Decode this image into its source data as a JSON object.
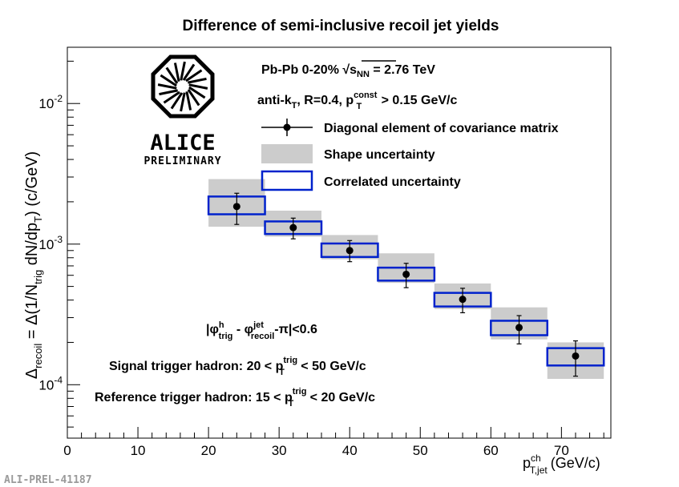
{
  "chart_data": {
    "type": "scatter",
    "title": "Difference of semi-inclusive recoil jet yields",
    "xlabel": {
      "main": "p",
      "sup": "ch",
      "sub": "T,jet",
      "unit": "(GeV/c)"
    },
    "ylabel": "Δrecoil = Δ(1/Ntrig dN/dpT) (c/GeV)",
    "xlim": [
      0,
      77
    ],
    "ylim_log10": [
      -4.38,
      -1.6
    ],
    "x_ticks": [
      0,
      10,
      20,
      30,
      40,
      50,
      60,
      70
    ],
    "x_tick_labels": [
      "0",
      "10",
      "20",
      "30",
      "40",
      "50",
      "60",
      "70"
    ],
    "y_tick_labels": [
      {
        "base": "10",
        "exp": "-2",
        "log10": -2
      },
      {
        "base": "10",
        "exp": "-3",
        "log10": -3
      },
      {
        "base": "10",
        "exp": "-4",
        "log10": -4
      }
    ],
    "series": [
      {
        "name": "Diagonal element of covariance matrix",
        "points": [
          {
            "x": 24,
            "xlow": 20,
            "xhigh": 28,
            "y": 0.00185,
            "ylow": 0.00138,
            "yhigh": 0.0023,
            "shape_low": 0.00133,
            "shape_high": 0.0029,
            "corr_low": 0.00163,
            "corr_high": 0.00218
          },
          {
            "x": 32,
            "xlow": 28,
            "xhigh": 36,
            "y": 0.00131,
            "ylow": 0.00109,
            "yhigh": 0.00153,
            "shape_low": 0.00113,
            "shape_high": 0.00173,
            "corr_low": 0.00118,
            "corr_high": 0.00145
          },
          {
            "x": 40,
            "xlow": 36,
            "xhigh": 44,
            "y": 0.0009,
            "ylow": 0.00075,
            "yhigh": 0.00106,
            "shape_low": 0.00078,
            "shape_high": 0.00116,
            "corr_low": 0.00081,
            "corr_high": 0.00101
          },
          {
            "x": 48,
            "xlow": 44,
            "xhigh": 52,
            "y": 0.00061,
            "ylow": 0.00049,
            "yhigh": 0.00073,
            "shape_low": 0.00053,
            "shape_high": 0.00086,
            "corr_low": 0.00055,
            "corr_high": 0.00068
          },
          {
            "x": 56,
            "xlow": 52,
            "xhigh": 60,
            "y": 0.000405,
            "ylow": 0.000325,
            "yhigh": 0.000485,
            "shape_low": 0.000345,
            "shape_high": 0.000525,
            "corr_low": 0.00036,
            "corr_high": 0.00045
          },
          {
            "x": 64,
            "xlow": 60,
            "xhigh": 68,
            "y": 0.000255,
            "ylow": 0.000195,
            "yhigh": 0.00031,
            "shape_low": 0.00021,
            "shape_high": 0.000355,
            "corr_low": 0.000225,
            "corr_high": 0.000285
          },
          {
            "x": 72,
            "xlow": 68,
            "xhigh": 76,
            "y": 0.00016,
            "ylow": 0.000115,
            "yhigh": 0.000205,
            "shape_low": 0.00011,
            "shape_high": 0.0002,
            "corr_low": 0.000137,
            "corr_high": 0.000182
          }
        ]
      }
    ],
    "legend": {
      "position": "top-right",
      "entries": [
        {
          "label": "Diagonal element of covariance matrix",
          "style": "marker-errorbar"
        },
        {
          "label": "Shape uncertainty",
          "style": "gray-box"
        },
        {
          "label": "Correlated uncertainty",
          "style": "blue-box"
        }
      ]
    },
    "annotations": {
      "system": "Pb-Pb 0-20% √sNN = 2.76 TeV",
      "jet_def": "anti-kT, R=0.4, pTconst > 0.15 GeV/c",
      "phi_cut": "|φhtrig - φjetrecoil-π|<0.6",
      "signal": "Signal trigger hadron: 20 < pTtrig < 50 GeV/c",
      "reference": "Reference trigger hadron: 15 < pTtrig < 20 GeV/c"
    },
    "logo": {
      "text1": "ALICE",
      "text2": "PRELIMINARY"
    },
    "footer": "ALI-PREL-41187",
    "colors": {
      "shape": "#cccccc",
      "correlated": "#0022cc",
      "marker": "#000000"
    }
  }
}
